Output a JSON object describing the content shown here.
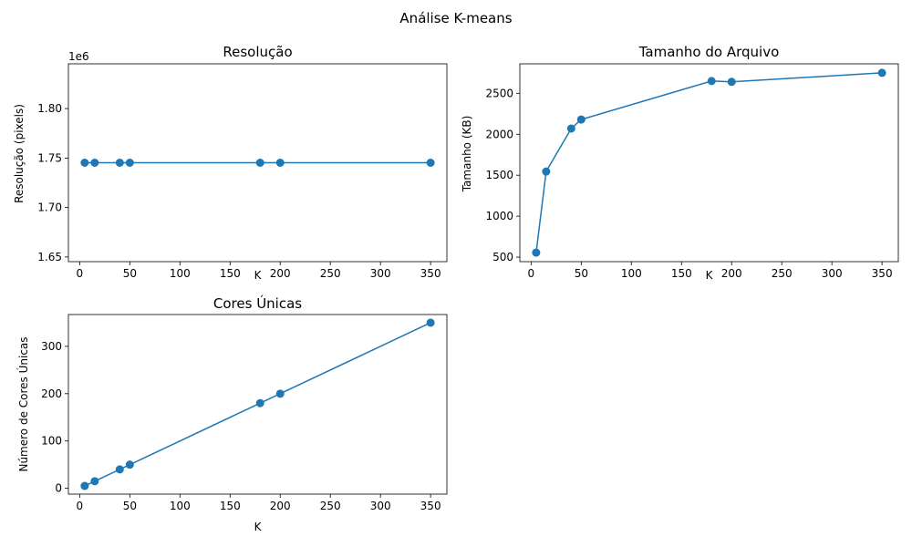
{
  "figure": {
    "suptitle": "Análise K-means"
  },
  "colors": {
    "series": "#1f77b4",
    "axes": "#000000",
    "background": "#ffffff"
  },
  "chart_data": [
    {
      "type": "line",
      "markers": "circle",
      "title": "Resolução",
      "xlabel": "K",
      "ylabel": "Resolução (pixels)",
      "offset_text": "1e6",
      "x": [
        5,
        15,
        40,
        50,
        180,
        200,
        350
      ],
      "y": [
        1745280,
        1745280,
        1745280,
        1745280,
        1745280,
        1745280,
        1745280
      ],
      "xlim": [
        -11.25,
        366.25
      ],
      "ylim": [
        1645280,
        1845280
      ],
      "xticks": [
        0,
        50,
        100,
        150,
        200,
        250,
        300,
        350
      ],
      "yticks": [
        1650000,
        1700000,
        1750000,
        1800000
      ],
      "ytick_labels": [
        "1.65",
        "1.70",
        "1.75",
        "1.80"
      ],
      "grid": false
    },
    {
      "type": "line",
      "markers": "circle",
      "title": "Tamanho do Arquivo",
      "xlabel": "K",
      "ylabel": "Tamanho (KB)",
      "x": [
        5,
        15,
        40,
        50,
        180,
        200,
        350
      ],
      "y": [
        555,
        1545,
        2070,
        2180,
        2650,
        2640,
        2750
      ],
      "xlim": [
        -11.25,
        366.25
      ],
      "ylim": [
        445,
        2860
      ],
      "xticks": [
        0,
        50,
        100,
        150,
        200,
        250,
        300,
        350
      ],
      "yticks": [
        500,
        1000,
        1500,
        2000,
        2500
      ],
      "ytick_labels": [
        "500",
        "1000",
        "1500",
        "2000",
        "2500"
      ],
      "grid": false
    },
    {
      "type": "line",
      "markers": "circle",
      "title": "Cores Únicas",
      "xlabel": "K",
      "ylabel": "Número de Cores Únicas",
      "x": [
        5,
        15,
        40,
        50,
        180,
        200,
        350
      ],
      "y": [
        5,
        15,
        40,
        50,
        180,
        200,
        350
      ],
      "xlim": [
        -11.25,
        366.25
      ],
      "ylim": [
        -12.25,
        367.25
      ],
      "xticks": [
        0,
        50,
        100,
        150,
        200,
        250,
        300,
        350
      ],
      "yticks": [
        0,
        100,
        200,
        300
      ],
      "ytick_labels": [
        "0",
        "100",
        "200",
        "300"
      ],
      "grid": false
    }
  ]
}
